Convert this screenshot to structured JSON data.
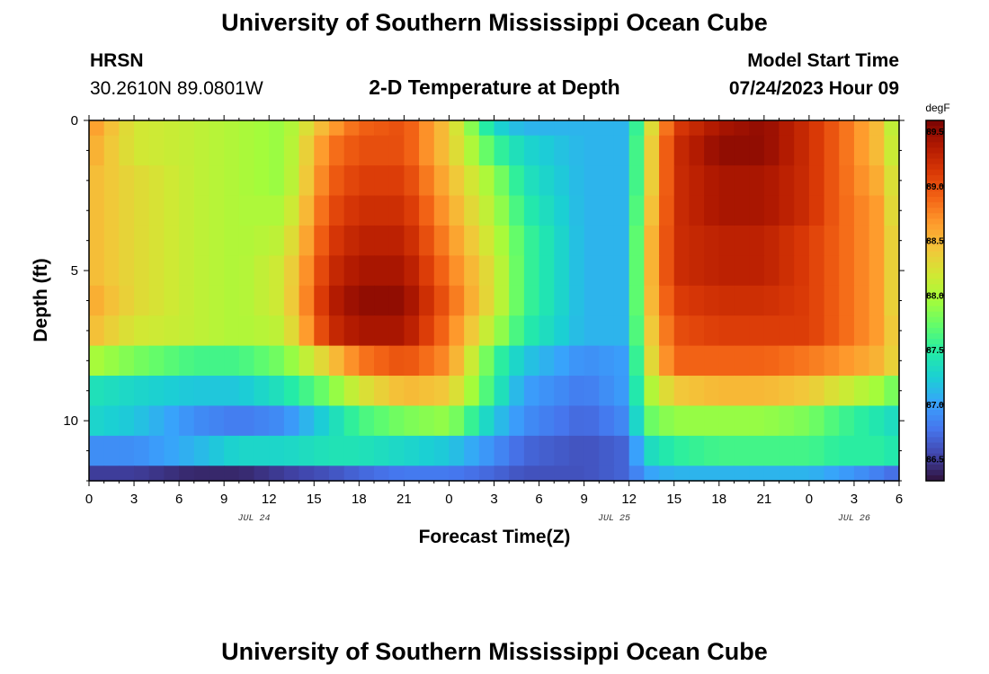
{
  "header": {
    "title": "University of Southern Mississippi Ocean Cube",
    "station": "HRSN",
    "coords": "30.2610N  89.0801W",
    "plot_title": "2-D Temperature at Depth",
    "model_start_label": "Model Start Time",
    "model_start_value": "07/24/2023 Hour 09"
  },
  "footer": {
    "title": "University of Southern Mississippi Ocean Cube"
  },
  "chart_data": {
    "type": "heatmap",
    "title": "2-D Temperature at Depth",
    "xlabel": "Forecast Time(Z)",
    "ylabel": "Depth (ft)",
    "x_tick_labels": [
      "0",
      "3",
      "6",
      "9",
      "12",
      "15",
      "18",
      "21",
      "0",
      "3",
      "6",
      "9",
      "12",
      "15",
      "18",
      "21",
      "0",
      "3",
      "6"
    ],
    "x_date_labels": [
      {
        "label": "JUL 24",
        "hour_index": 11
      },
      {
        "label": "JUL 25",
        "hour_index": 35
      },
      {
        "label": "JUL 26",
        "hour_index": 51
      }
    ],
    "x_hours_range": [
      0,
      54
    ],
    "y_range": [
      0,
      12
    ],
    "y_ticks": [
      0,
      5,
      10
    ],
    "colorbar": {
      "unit": "degF",
      "min": 86.3,
      "max": 89.6,
      "ticks": [
        "89.5",
        "89.0",
        "88.5",
        "88.0",
        "87.5",
        "87.0",
        "86.5"
      ],
      "colors": [
        "#30123b",
        "#4145ab",
        "#4675ed",
        "#39a2fc",
        "#1bcfd4",
        "#24eca6",
        "#61fc6c",
        "#a4fc3b",
        "#d1e834",
        "#f3c63a",
        "#fe9b2d",
        "#f36315",
        "#d93806",
        "#b11901",
        "#7a0403"
      ]
    },
    "depth_bands_ft": [
      {
        "top": 0.0,
        "bottom": 0.5
      },
      {
        "top": 0.5,
        "bottom": 1.5
      },
      {
        "top": 1.5,
        "bottom": 2.5
      },
      {
        "top": 2.5,
        "bottom": 3.5
      },
      {
        "top": 3.5,
        "bottom": 4.5
      },
      {
        "top": 4.5,
        "bottom": 5.5
      },
      {
        "top": 5.5,
        "bottom": 6.5
      },
      {
        "top": 6.5,
        "bottom": 7.5
      },
      {
        "top": 7.5,
        "bottom": 8.5
      },
      {
        "top": 8.5,
        "bottom": 9.5
      },
      {
        "top": 9.5,
        "bottom": 10.5
      },
      {
        "top": 10.5,
        "bottom": 11.5
      },
      {
        "top": 11.5,
        "bottom": 12.0
      }
    ],
    "time_keyframes_hours": [
      0,
      3,
      7,
      10,
      13,
      16,
      18,
      21,
      24,
      27,
      29,
      33,
      36,
      37,
      39,
      42,
      45,
      48,
      50,
      53,
      54
    ],
    "temperature_degF": [
      [
        88.7,
        88.2,
        88.1,
        88.0,
        87.9,
        88.6,
        88.9,
        89.0,
        88.4,
        87.3,
        87.1,
        87.1,
        87.1,
        88.0,
        89.1,
        89.4,
        89.5,
        89.2,
        88.9,
        88.4,
        87.8
      ],
      [
        88.6,
        88.2,
        88.1,
        88.0,
        87.9,
        88.8,
        89.0,
        89.0,
        88.4,
        87.6,
        87.3,
        87.1,
        87.1,
        88.1,
        89.2,
        89.5,
        89.5,
        89.2,
        88.9,
        88.4,
        87.9
      ],
      [
        88.5,
        88.3,
        88.1,
        88.0,
        87.9,
        88.9,
        89.1,
        89.1,
        88.5,
        87.9,
        87.4,
        87.1,
        87.1,
        88.1,
        89.2,
        89.4,
        89.4,
        89.2,
        88.9,
        88.5,
        88.0
      ],
      [
        88.5,
        88.3,
        88.1,
        88.0,
        88.0,
        89.0,
        89.2,
        89.2,
        88.6,
        88.0,
        87.5,
        87.1,
        87.1,
        88.2,
        89.2,
        89.4,
        89.4,
        89.2,
        88.9,
        88.6,
        88.0
      ],
      [
        88.5,
        88.3,
        88.1,
        88.0,
        88.1,
        89.1,
        89.3,
        89.3,
        88.7,
        88.1,
        87.6,
        87.1,
        87.1,
        88.3,
        89.2,
        89.3,
        89.3,
        89.1,
        88.9,
        88.6,
        88.1
      ],
      [
        88.5,
        88.3,
        88.1,
        88.0,
        88.2,
        89.2,
        89.4,
        89.4,
        88.8,
        88.2,
        87.6,
        87.1,
        87.1,
        88.3,
        89.2,
        89.3,
        89.3,
        89.1,
        88.9,
        88.6,
        88.1
      ],
      [
        88.6,
        88.3,
        88.1,
        88.0,
        88.2,
        89.3,
        89.5,
        89.5,
        88.9,
        88.2,
        87.6,
        87.1,
        87.1,
        88.3,
        89.1,
        89.2,
        89.2,
        89.1,
        88.9,
        88.6,
        88.1
      ],
      [
        88.5,
        88.2,
        88.1,
        88.0,
        88.1,
        89.2,
        89.4,
        89.4,
        88.8,
        88.0,
        87.5,
        87.1,
        87.1,
        88.2,
        89.0,
        89.1,
        89.1,
        89.1,
        88.9,
        88.6,
        88.2
      ],
      [
        88.0,
        87.8,
        87.6,
        87.6,
        87.8,
        88.4,
        88.8,
        89.0,
        88.7,
        87.6,
        87.2,
        86.9,
        87.0,
        88.1,
        88.9,
        88.9,
        88.9,
        88.8,
        88.7,
        88.5,
        88.2
      ],
      [
        87.4,
        87.3,
        87.2,
        87.2,
        87.4,
        87.8,
        88.2,
        88.5,
        88.4,
        87.5,
        87.0,
        86.8,
        87.0,
        87.9,
        88.4,
        88.5,
        88.5,
        88.4,
        88.2,
        87.9,
        87.7
      ],
      [
        87.3,
        87.2,
        86.9,
        86.8,
        86.9,
        87.3,
        87.6,
        87.8,
        87.9,
        87.2,
        86.9,
        86.7,
        86.9,
        87.7,
        87.9,
        87.9,
        87.9,
        87.8,
        87.6,
        87.4,
        87.3
      ],
      [
        86.9,
        86.9,
        87.1,
        87.3,
        87.3,
        87.4,
        87.4,
        87.3,
        87.2,
        86.9,
        86.7,
        86.6,
        86.7,
        87.3,
        87.5,
        87.6,
        87.6,
        87.6,
        87.5,
        87.5,
        87.4
      ],
      [
        86.5,
        86.5,
        86.4,
        86.4,
        86.5,
        86.6,
        86.7,
        86.8,
        86.8,
        86.7,
        86.6,
        86.6,
        86.7,
        87.0,
        87.1,
        87.1,
        87.1,
        87.1,
        87.0,
        86.8,
        86.7
      ]
    ]
  }
}
